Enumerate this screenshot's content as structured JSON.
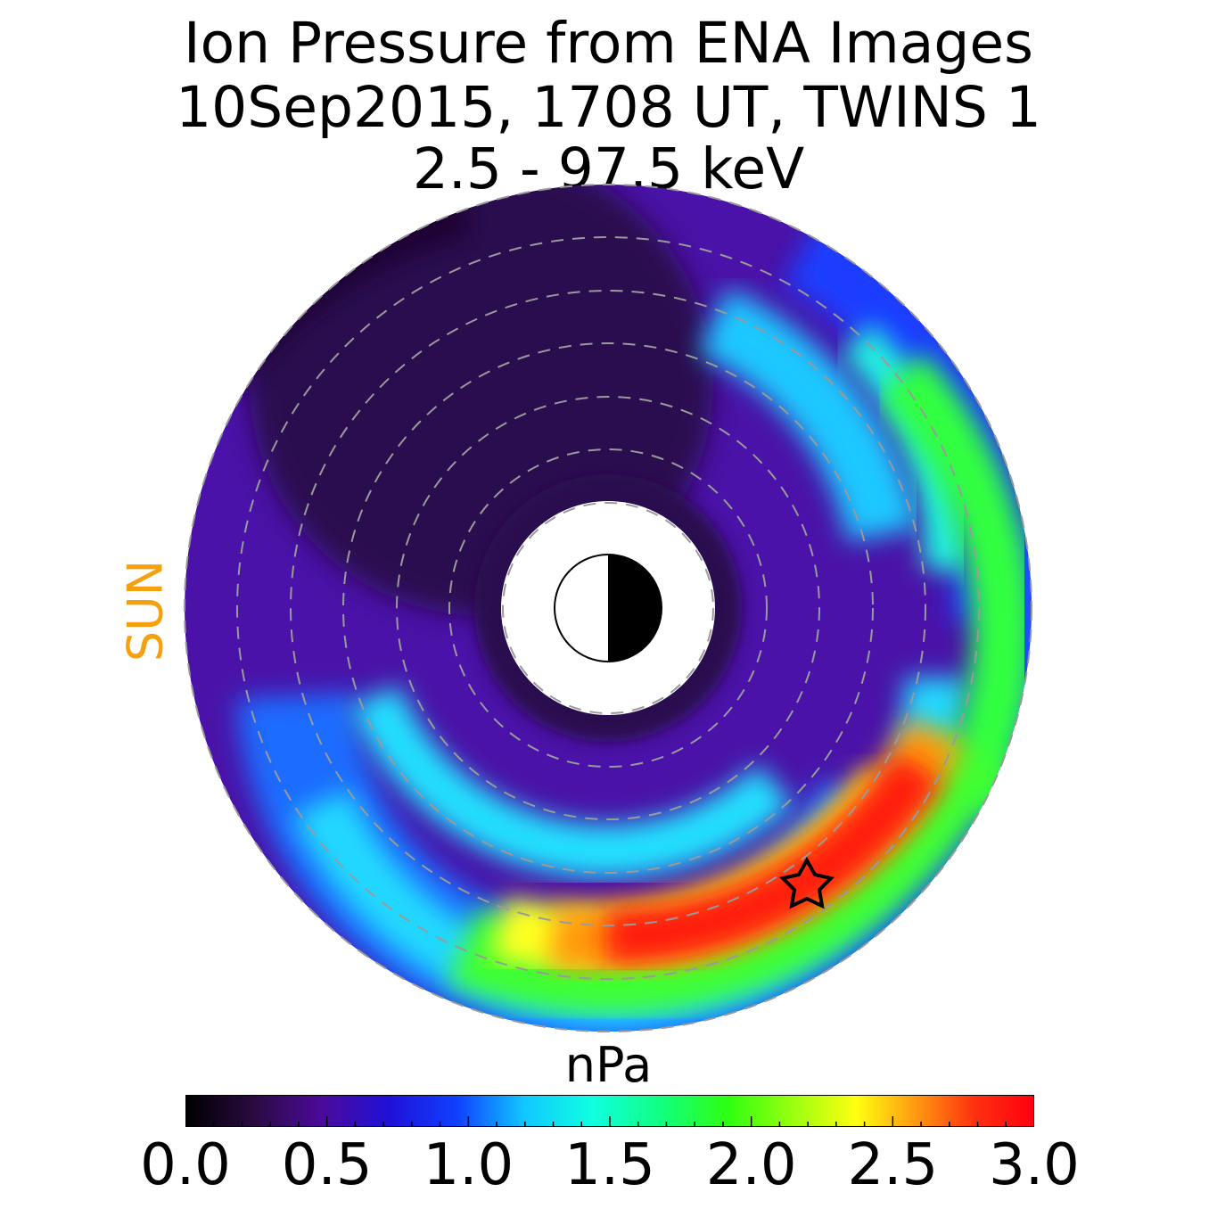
{
  "title_lines": [
    "Ion Pressure from  ENA Images",
    "10Sep2015, 1708 UT,  TWINS 1",
    "2.5 - 97.5 keV"
  ],
  "sun_label": "SUN",
  "sun_color": "#f5a10f",
  "chart_data": {
    "type": "heatmap",
    "subtype": "polar equatorial map",
    "title": "Ion Pressure from  ENA Images / 10Sep2015, 1708 UT,  TWINS 1 / 2.5 - 97.5 keV",
    "colorbar": {
      "label": "nPa",
      "range": [
        0.0,
        3.0
      ],
      "tick_labels": [
        "0.0",
        "0.5",
        "1.0",
        "1.5",
        "2.0",
        "2.5",
        "3.0"
      ],
      "tick_values": [
        0.0,
        0.5,
        1.0,
        1.5,
        2.0,
        2.5,
        3.0
      ],
      "colormap": "rainbow (black-purple-blue-cyan-green-yellow-red)"
    },
    "sun_direction": "left",
    "peak_marker": "star",
    "features": [
      {
        "region": "ring peak near star (dusk/night sector)",
        "value_nPa": 3.0
      },
      {
        "region": "outer band along right edge",
        "value_nPa": 2.0
      },
      {
        "region": "mid band",
        "value_nPa": 1.3
      },
      {
        "region": "upper-left sector",
        "value_nPa": 0.2
      }
    ]
  }
}
